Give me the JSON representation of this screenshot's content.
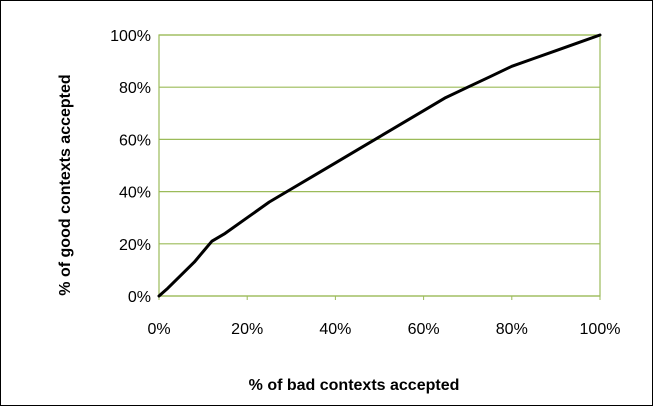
{
  "chart_data": {
    "type": "line",
    "title": "",
    "xlabel": "% of bad contexts accepted",
    "ylabel": "% of good contexts accepted",
    "xlim": [
      0,
      100
    ],
    "ylim": [
      0,
      100
    ],
    "x_ticks": [
      "0%",
      "20%",
      "40%",
      "60%",
      "80%",
      "100%"
    ],
    "y_ticks": [
      "0%",
      "20%",
      "40%",
      "60%",
      "80%",
      "100%"
    ],
    "grid": "horizontal",
    "legend": "none",
    "colors": {
      "line": "#000000",
      "grid": "#9BBB59",
      "plot_border": "#9BBB59"
    },
    "series": [
      {
        "x": [
          0,
          2,
          5,
          8,
          10,
          12,
          15,
          20,
          25,
          30,
          35,
          40,
          45,
          50,
          55,
          60,
          65,
          70,
          75,
          80,
          85,
          90,
          95,
          100
        ],
        "y": [
          0,
          3,
          8,
          13,
          17,
          21,
          24,
          30,
          36,
          41,
          46,
          51,
          56,
          61,
          66,
          71,
          76,
          80,
          84,
          88,
          91,
          94,
          97,
          100
        ]
      }
    ]
  }
}
